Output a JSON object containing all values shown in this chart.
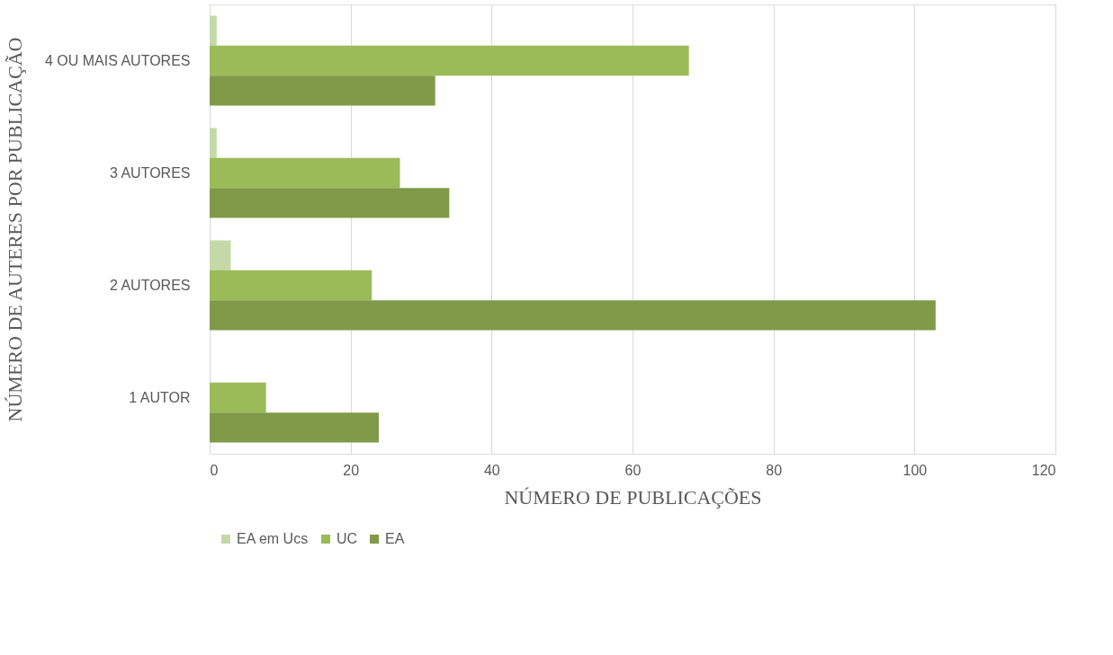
{
  "chart_data": {
    "type": "bar",
    "orientation": "horizontal",
    "xlabel": "NÚMERO DE PUBLICAÇÕES",
    "ylabel": "NÚMERO DE AUTERES POR PUBLICAÇÃO",
    "categories": [
      "4 OU MAIS AUTORES",
      "3 AUTORES",
      "2 AUTORES",
      "1 AUTOR"
    ],
    "series": [
      {
        "name": "EA em Ucs",
        "color": "#c5d9a8",
        "values": [
          1,
          1,
          3,
          0
        ]
      },
      {
        "name": "UC",
        "color": "#9bbb59",
        "values": [
          68,
          27,
          23,
          8
        ]
      },
      {
        "name": "EA",
        "color": "#7f9a48",
        "values": [
          32,
          34,
          103,
          24
        ]
      }
    ],
    "xlim": [
      0,
      120
    ],
    "xticks": [
      0,
      20,
      40,
      60,
      80,
      100,
      120
    ],
    "grid": "x",
    "legend": "bottom"
  }
}
